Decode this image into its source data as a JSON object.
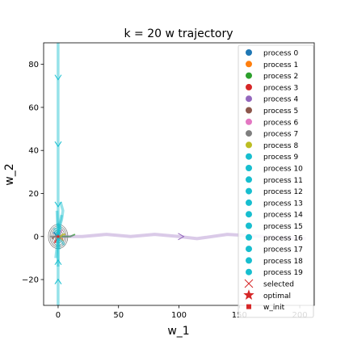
{
  "chart_data": {
    "type": "line",
    "title": "k = 20 w trajectory",
    "xlabel": "w_1",
    "ylabel": "w_2",
    "xlim": [
      -12,
      212
    ],
    "ylim": [
      -32,
      90
    ],
    "xticks": [
      0,
      50,
      100,
      150,
      200
    ],
    "yticks": [
      -20,
      0,
      20,
      40,
      60,
      80
    ],
    "grid": false,
    "legend_position": "right",
    "optimal": [
      0,
      0
    ],
    "contour_center": [
      0,
      0
    ],
    "series": [
      {
        "name": "process 0",
        "color": "#1f77b4",
        "x": [
          -4,
          -2,
          0,
          1,
          0
        ],
        "y": [
          2,
          1,
          0,
          0,
          0
        ]
      },
      {
        "name": "process 1",
        "color": "#ff7f0e",
        "x": [
          4,
          3,
          2,
          1,
          0
        ],
        "y": [
          -2,
          -1,
          -1,
          0,
          0
        ]
      },
      {
        "name": "process 2",
        "color": "#2ca02c",
        "x": [
          14,
          10,
          6,
          3,
          1,
          0
        ],
        "y": [
          1,
          0,
          0,
          0,
          0,
          0
        ]
      },
      {
        "name": "process 3",
        "color": "#d62728",
        "x": [
          -3,
          -1,
          0
        ],
        "y": [
          -3,
          -1,
          0
        ]
      },
      {
        "name": "process 4",
        "color": "#9467bd",
        "x": [
          205,
          170,
          140,
          115,
          100,
          80,
          60,
          40,
          20,
          5,
          0
        ],
        "y": [
          -1,
          0,
          1,
          -1,
          0,
          1,
          0,
          1,
          0,
          0,
          0
        ]
      },
      {
        "name": "process 5",
        "color": "#8c564b",
        "x": [
          -5,
          -3,
          -1,
          0
        ],
        "y": [
          -1,
          0,
          0,
          0
        ]
      },
      {
        "name": "process 6",
        "color": "#e377c2",
        "x": [
          3,
          2,
          1,
          0
        ],
        "y": [
          3,
          2,
          1,
          0
        ]
      },
      {
        "name": "process 7",
        "color": "#7f7f7f",
        "x": [
          -7,
          -4,
          -2,
          0
        ],
        "y": [
          0,
          0,
          0,
          0
        ]
      },
      {
        "name": "process 8",
        "color": "#bcbd22",
        "x": [
          6,
          4,
          2,
          0
        ],
        "y": [
          1,
          1,
          0,
          0
        ]
      },
      {
        "name": "process 9",
        "color": "#17becf",
        "x": [
          0,
          0,
          0,
          0,
          0,
          0,
          0,
          0,
          0
        ],
        "y": [
          90,
          74,
          60,
          43,
          30,
          16,
          8,
          3,
          0
        ]
      },
      {
        "name": "process 10",
        "color": "#17becf",
        "x": [
          0,
          0,
          0,
          0,
          0,
          0
        ],
        "y": [
          -32,
          -22,
          -12,
          -5,
          -2,
          0
        ]
      },
      {
        "name": "process 11",
        "color": "#17becf",
        "x": [
          2,
          4,
          3,
          1,
          0
        ],
        "y": [
          16,
          12,
          8,
          4,
          0
        ]
      },
      {
        "name": "process 12",
        "color": "#17becf",
        "x": [
          -2,
          -1,
          0
        ],
        "y": [
          -10,
          -5,
          0
        ]
      },
      {
        "name": "process 13",
        "color": "#17becf",
        "x": [
          -1,
          2,
          1,
          0
        ],
        "y": [
          6,
          4,
          2,
          0
        ]
      },
      {
        "name": "process 14",
        "color": "#17becf",
        "x": [
          5,
          3,
          1,
          0
        ],
        "y": [
          -4,
          -2,
          -1,
          0
        ]
      },
      {
        "name": "process 15",
        "color": "#17becf",
        "x": [
          -3,
          -2,
          0
        ],
        "y": [
          4,
          2,
          0
        ]
      },
      {
        "name": "process 16",
        "color": "#17becf",
        "x": [
          1,
          0
        ],
        "y": [
          -6,
          0
        ]
      },
      {
        "name": "process 17",
        "color": "#17becf",
        "x": [
          3,
          1,
          0
        ],
        "y": [
          10,
          5,
          0
        ]
      },
      {
        "name": "process 18",
        "color": "#17becf",
        "x": [
          -1,
          0
        ],
        "y": [
          12,
          0
        ]
      },
      {
        "name": "process 19",
        "color": "#17becf",
        "x": [
          0,
          0
        ],
        "y": [
          -14,
          0
        ]
      }
    ],
    "markers": [
      {
        "series": "process 9",
        "x": 0,
        "y": 74
      },
      {
        "series": "process 9",
        "x": 0,
        "y": 43
      },
      {
        "series": "process 9",
        "x": 0,
        "y": 15
      },
      {
        "series": "process 10",
        "x": 0,
        "y": -12
      },
      {
        "series": "process 10",
        "x": 0,
        "y": -21
      },
      {
        "series": "process 4",
        "x": 102,
        "y": 0
      }
    ],
    "legend_extra": [
      {
        "label": "selected",
        "marker": "x",
        "color": "#d62728"
      },
      {
        "label": "optimal",
        "marker": "star",
        "color": "#d62728"
      },
      {
        "label": "w_init",
        "marker": "square",
        "color": "#d62728"
      }
    ]
  }
}
